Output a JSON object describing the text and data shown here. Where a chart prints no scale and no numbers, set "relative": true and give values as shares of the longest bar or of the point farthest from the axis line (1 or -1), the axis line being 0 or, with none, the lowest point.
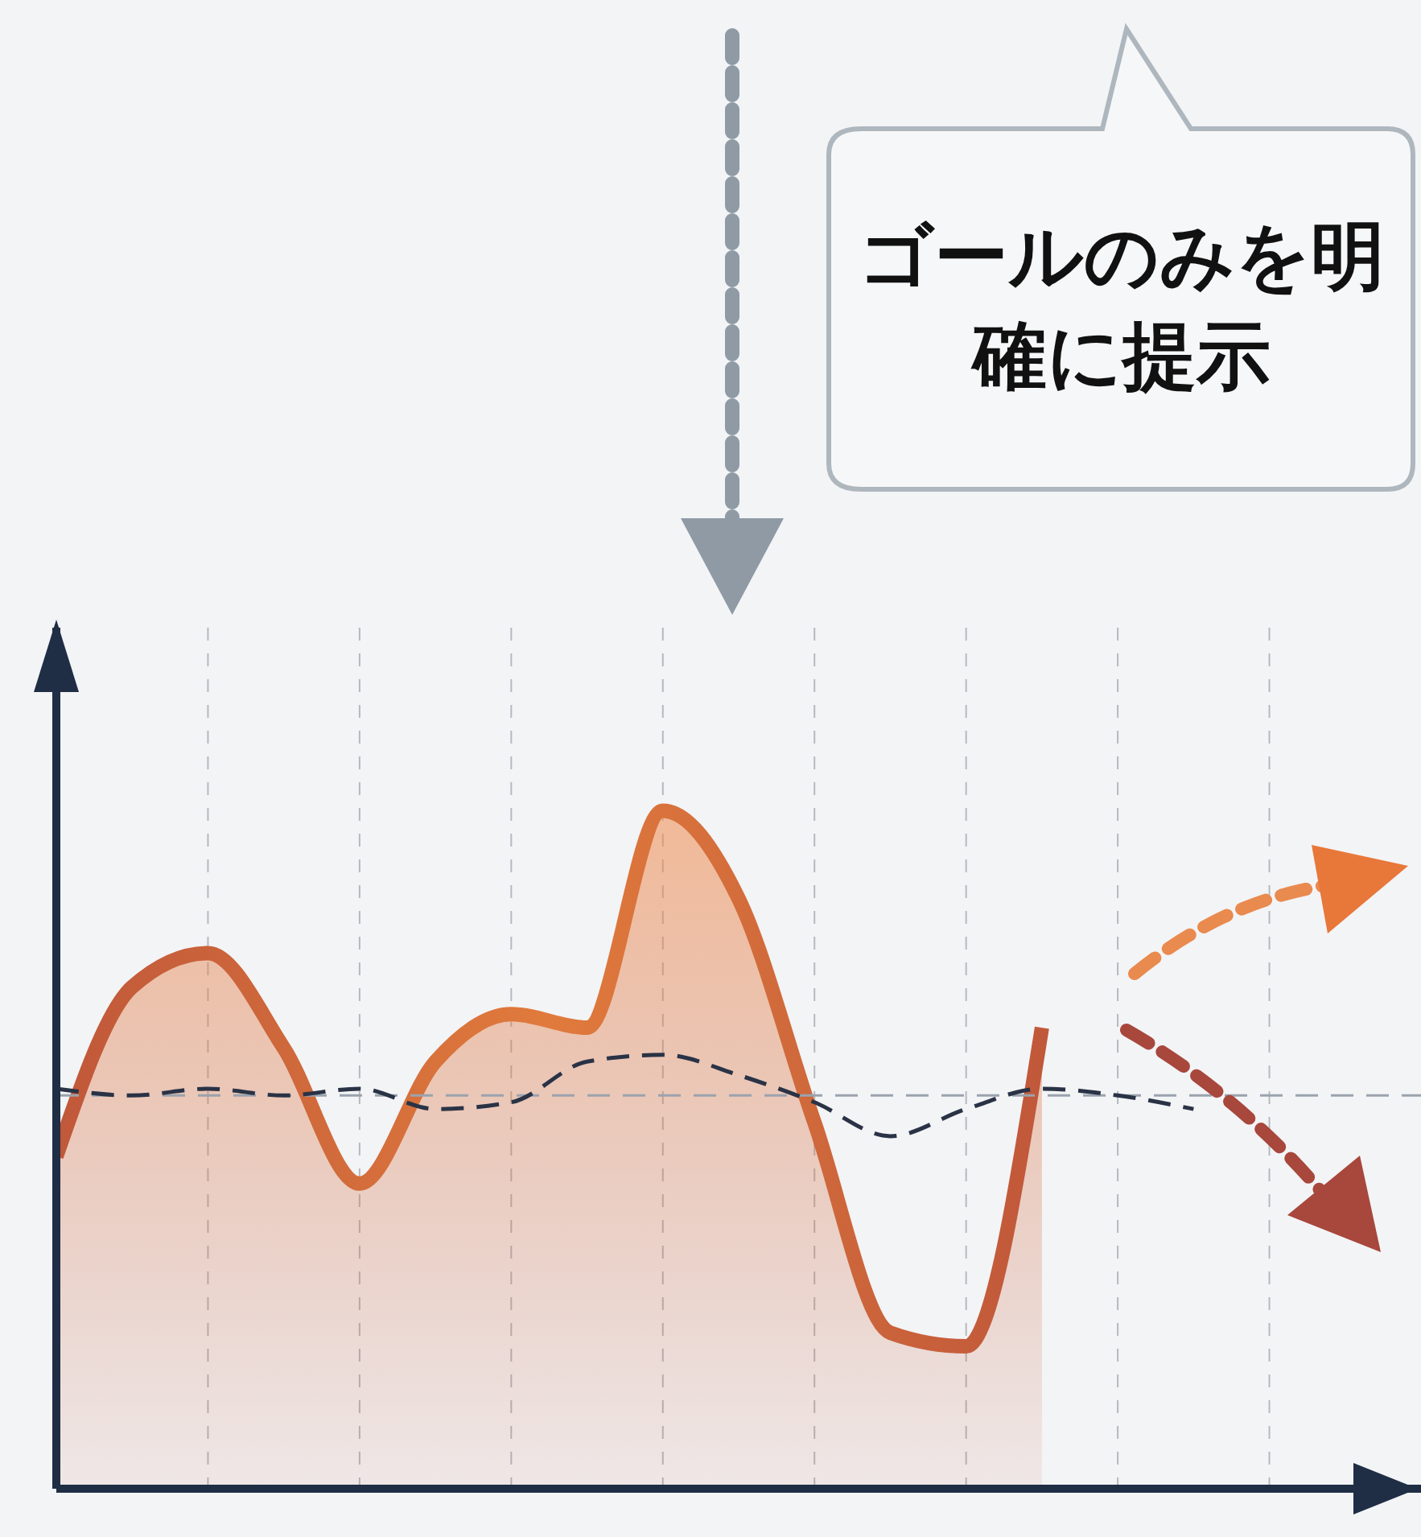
{
  "chart_data": {
    "type": "area",
    "relative": true,
    "grid": "x",
    "marker": "none",
    "categories": [
      null,
      null,
      null,
      null,
      null,
      null,
      null,
      null,
      null,
      null,
      null,
      null,
      null,
      null,
      null,
      null,
      null
    ],
    "series": [
      {
        "color": "#c0583a",
        "values": [
          0.49,
          0.74,
          0.79,
          0.65,
          0.45,
          0.63,
          0.7,
          0.68,
          1.0,
          0.87,
          0.54,
          0.23,
          0.21,
          0.68,
          null,
          null,
          null
        ]
      },
      {
        "type": "line",
        "color": "#2a3346",
        "line_style": "dashed",
        "values": [
          0.59,
          0.58,
          0.59,
          0.58,
          0.59,
          0.56,
          0.57,
          0.63,
          0.64,
          0.61,
          0.57,
          0.52,
          0.56,
          0.59,
          0.58,
          0.56,
          null
        ]
      }
    ],
    "ref_lines": [
      {
        "axis": "y",
        "value": 0.58,
        "color": "#9aa3ad",
        "line_style": "dashed"
      }
    ],
    "annotations": [
      "ゴールのみを明確に提示"
    ]
  }
}
